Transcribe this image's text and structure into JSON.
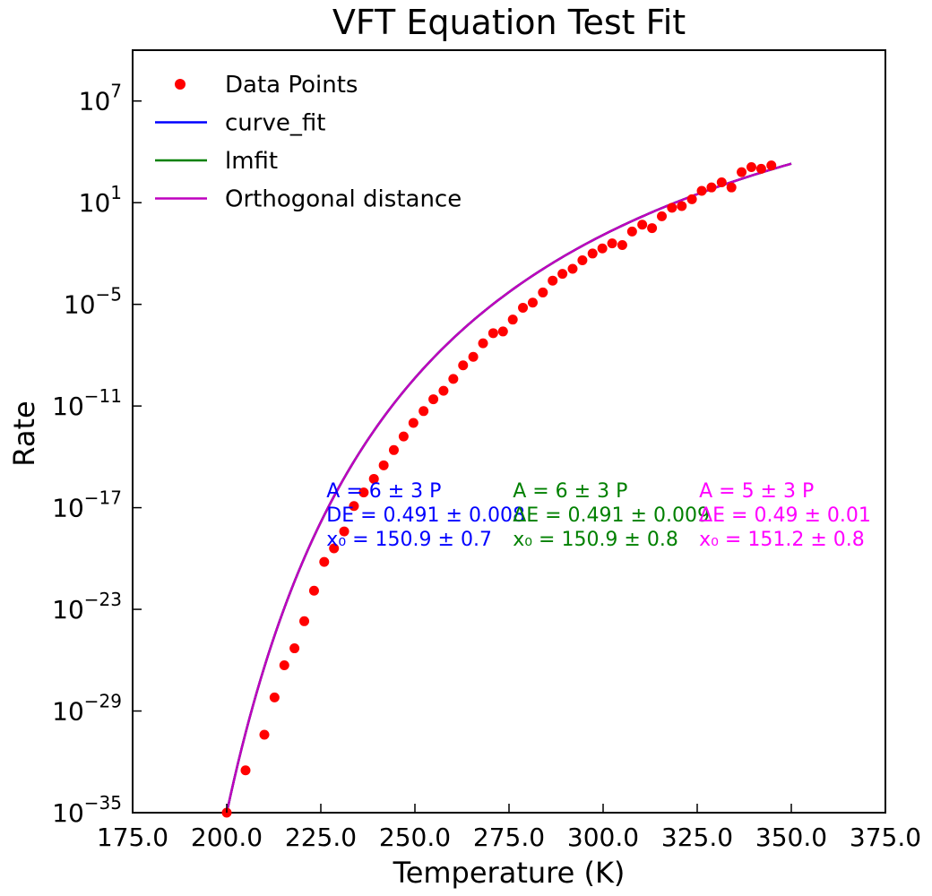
{
  "chart_data": {
    "type": "scatter",
    "title": "VFT Equation Test Fit",
    "xlabel": "Temperature (K)",
    "ylabel": "Rate",
    "xlim": [
      175,
      375
    ],
    "ylim_exponent": [
      -35,
      10
    ],
    "yscale": "log",
    "x_ticks": [
      "175.0",
      "200.0",
      "225.0",
      "250.0",
      "275.0",
      "300.0",
      "325.0",
      "350.0",
      "375.0"
    ],
    "y_ticks": [
      {
        "exp": -35,
        "base": "10",
        "power": "−35"
      },
      {
        "exp": -29,
        "base": "10",
        "power": "−29"
      },
      {
        "exp": -23,
        "base": "10",
        "power": "−23"
      },
      {
        "exp": -17,
        "base": "10",
        "power": "−17"
      },
      {
        "exp": -11,
        "base": "10",
        "power": "−11"
      },
      {
        "exp": -5,
        "base": "10",
        "power": "−5"
      },
      {
        "exp": 1,
        "base": "10",
        "power": "1"
      },
      {
        "exp": 7,
        "base": "10",
        "power": "7"
      }
    ],
    "legend_position": "top-left",
    "grid": false,
    "colors": {
      "data_points": "#ff0000",
      "curve_fit": "#0000ff",
      "lmfit": "#008000",
      "odr": "#bf00bf",
      "odr_annotation": "#ff00ff"
    },
    "legend": [
      {
        "label": "Data Points",
        "kind": "marker",
        "color": "#ff0000"
      },
      {
        "label": "curve_fit",
        "kind": "line",
        "color": "#0000ff"
      },
      {
        "label": "lmfit",
        "kind": "line",
        "color": "#008000"
      },
      {
        "label": "Orthogonal distance",
        "kind": "line",
        "color": "#bf00bf"
      }
    ],
    "fit_curve": {
      "A": 6.0,
      "DE": 0.491,
      "x0": 150.9,
      "x_start": 200,
      "x_end": 350
    },
    "points": [
      {
        "x": 200.0,
        "y": -35.0
      },
      {
        "x": 205.0,
        "y": -32.5
      },
      {
        "x": 210.0,
        "y": -30.4
      },
      {
        "x": 212.7,
        "y": -28.2
      },
      {
        "x": 215.3,
        "y": -26.3
      },
      {
        "x": 218.0,
        "y": -25.3
      },
      {
        "x": 220.6,
        "y": -23.7
      },
      {
        "x": 223.2,
        "y": -21.9
      },
      {
        "x": 225.9,
        "y": -20.2
      },
      {
        "x": 228.5,
        "y": -19.4
      },
      {
        "x": 231.2,
        "y": -18.4
      },
      {
        "x": 233.8,
        "y": -16.9
      },
      {
        "x": 236.4,
        "y": -16.1
      },
      {
        "x": 239.1,
        "y": -15.3
      },
      {
        "x": 241.7,
        "y": -14.5
      },
      {
        "x": 244.4,
        "y": -13.6
      },
      {
        "x": 247.0,
        "y": -12.8
      },
      {
        "x": 249.6,
        "y": -12.0
      },
      {
        "x": 252.3,
        "y": -11.3
      },
      {
        "x": 254.9,
        "y": -10.6
      },
      {
        "x": 257.6,
        "y": -10.1
      },
      {
        "x": 260.2,
        "y": -9.4
      },
      {
        "x": 262.8,
        "y": -8.6
      },
      {
        "x": 265.5,
        "y": -8.1
      },
      {
        "x": 268.1,
        "y": -7.3
      },
      {
        "x": 270.8,
        "y": -6.7
      },
      {
        "x": 273.4,
        "y": -6.6
      },
      {
        "x": 276.0,
        "y": -5.9
      },
      {
        "x": 278.7,
        "y": -5.2
      },
      {
        "x": 281.3,
        "y": -4.9
      },
      {
        "x": 284.0,
        "y": -4.3
      },
      {
        "x": 286.6,
        "y": -3.6
      },
      {
        "x": 289.2,
        "y": -3.2
      },
      {
        "x": 291.9,
        "y": -2.9
      },
      {
        "x": 294.5,
        "y": -2.4
      },
      {
        "x": 297.2,
        "y": -2.0
      },
      {
        "x": 299.8,
        "y": -1.7
      },
      {
        "x": 302.4,
        "y": -1.4
      },
      {
        "x": 305.1,
        "y": -1.5
      },
      {
        "x": 307.7,
        "y": -0.7
      },
      {
        "x": 310.4,
        "y": -0.3
      },
      {
        "x": 313.0,
        "y": -0.5
      },
      {
        "x": 315.6,
        "y": 0.2
      },
      {
        "x": 318.3,
        "y": 0.7
      },
      {
        "x": 320.9,
        "y": 0.8
      },
      {
        "x": 323.6,
        "y": 1.2
      },
      {
        "x": 326.2,
        "y": 1.7
      },
      {
        "x": 328.8,
        "y": 1.9
      },
      {
        "x": 331.5,
        "y": 2.2
      },
      {
        "x": 334.1,
        "y": 1.9
      },
      {
        "x": 336.8,
        "y": 2.8
      },
      {
        "x": 339.4,
        "y": 3.1
      },
      {
        "x": 342.0,
        "y": 3.0
      },
      {
        "x": 344.7,
        "y": 3.2
      }
    ],
    "annotations": [
      {
        "color": "#0000ff",
        "x": 226.5,
        "lines": [
          "A = 6 ± 3 P",
          "DE = 0.491 ± 0.008",
          "x₀ = 150.9 ± 0.7"
        ]
      },
      {
        "color": "#008000",
        "x": 276.0,
        "lines": [
          "A = 6 ± 3 P",
          "ΔE = 0.491 ± 0.009",
          "x₀ = 150.9 ± 0.8"
        ]
      },
      {
        "color": "#ff00ff",
        "x": 325.5,
        "lines": [
          "A = 5 ± 3 P",
          "ΔE = 0.49 ± 0.01",
          "x₀ = 151.2 ± 0.8"
        ]
      }
    ]
  }
}
